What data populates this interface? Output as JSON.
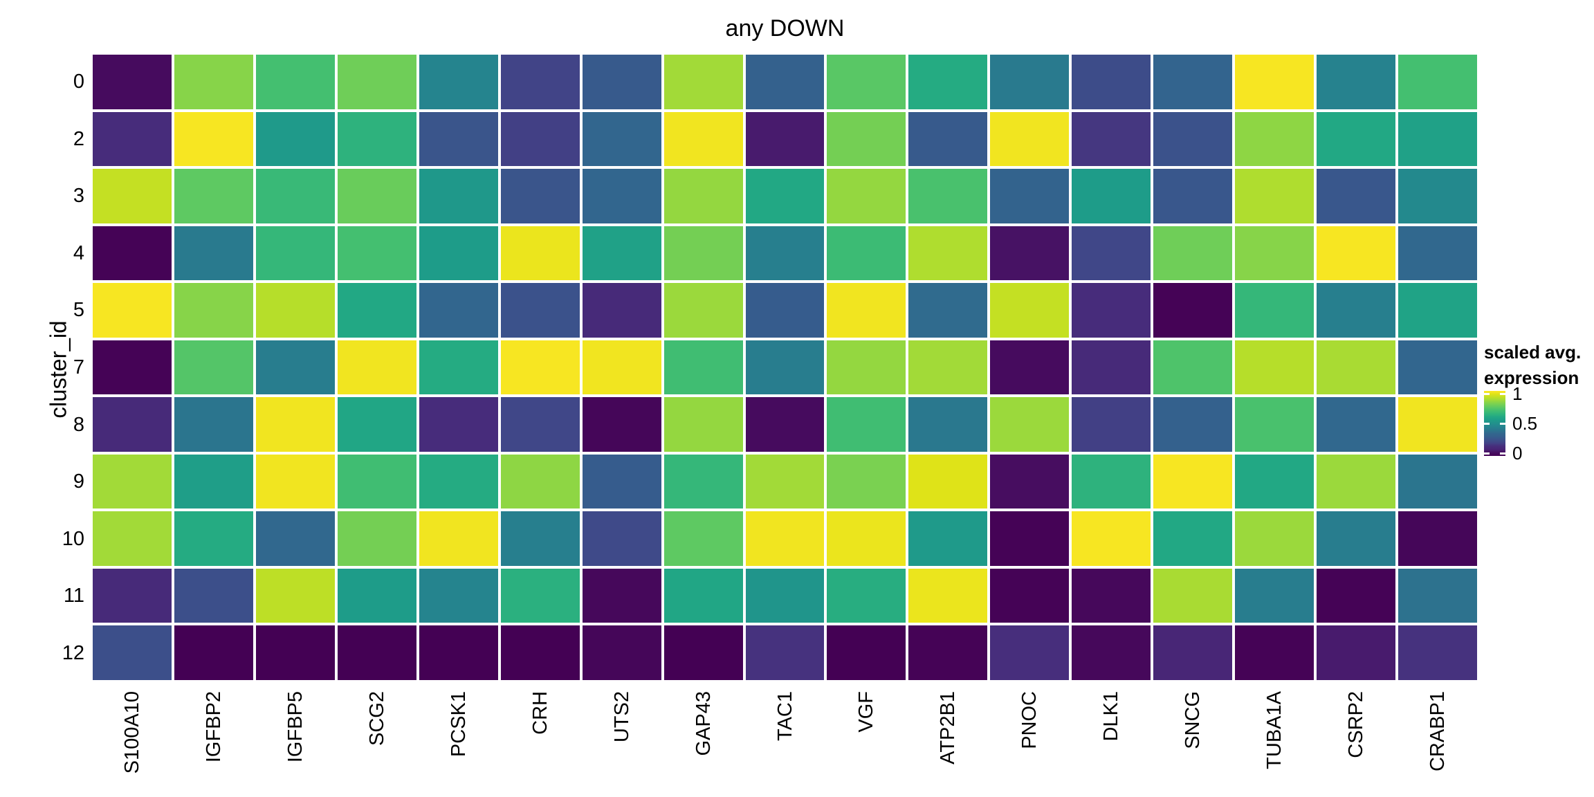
{
  "title": "any DOWN",
  "axes": {
    "y_title": "cluster_id",
    "x_tick_labels": [
      "S100A10",
      "IGFBP2",
      "IGFBP5",
      "SCG2",
      "PCSK1",
      "CRH",
      "UTS2",
      "GAP43",
      "TAC1",
      "VGF",
      "ATP2B1",
      "PNOC",
      "DLK1",
      "SNCG",
      "TUBA1A",
      "CSRP2",
      "CRABP1"
    ],
    "y_tick_labels": [
      "0",
      "2",
      "3",
      "4",
      "5",
      "7",
      "8",
      "9",
      "10",
      "11",
      "12"
    ]
  },
  "legend": {
    "title_line1": "scaled avg.",
    "title_line2": "expression",
    "tick_labels": [
      "1",
      "0.5",
      "0"
    ],
    "tick_values": [
      1,
      0.5,
      0
    ]
  },
  "colors": {
    "background": "#ffffff",
    "text": "#000000",
    "cell_gap": "#ffffff"
  },
  "chart_data": {
    "type": "heatmap",
    "title": "any DOWN",
    "xlabel": "",
    "ylabel": "cluster_id",
    "legend_title": "scaled avg. expression",
    "colormap": "viridis",
    "value_range": [
      0,
      1
    ],
    "grid": false,
    "legend_position": "right",
    "x_categories": [
      "S100A10",
      "IGFBP2",
      "IGFBP5",
      "SCG2",
      "PCSK1",
      "CRH",
      "UTS2",
      "GAP43",
      "TAC1",
      "VGF",
      "ATP2B1",
      "PNOC",
      "DLK1",
      "SNCG",
      "TUBA1A",
      "CSRP2",
      "CRABP1"
    ],
    "y_categories": [
      "0",
      "2",
      "3",
      "4",
      "5",
      "7",
      "8",
      "9",
      "10",
      "11",
      "12"
    ],
    "colormap_stops": [
      "#440154",
      "#470d60",
      "#482475",
      "#472e7c",
      "#414487",
      "#3b528b",
      "#355f8d",
      "#31688e",
      "#2a788e",
      "#25848e",
      "#21918c",
      "#1e9c89",
      "#22a884",
      "#31b57b",
      "#44bf70",
      "#5ec962",
      "#7ad151",
      "#9bd93c",
      "#bddf26",
      "#dfe318",
      "#fde725"
    ],
    "values": [
      [
        0.04,
        0.82,
        0.7,
        0.78,
        0.45,
        0.2,
        0.28,
        0.86,
        0.31,
        0.74,
        0.61,
        0.41,
        0.23,
        0.33,
        0.99,
        0.44,
        0.7
      ],
      [
        0.14,
        0.99,
        0.54,
        0.64,
        0.26,
        0.19,
        0.34,
        0.98,
        0.08,
        0.79,
        0.28,
        0.98,
        0.17,
        0.25,
        0.83,
        0.6,
        0.57
      ],
      [
        0.91,
        0.75,
        0.67,
        0.77,
        0.53,
        0.26,
        0.34,
        0.84,
        0.6,
        0.84,
        0.71,
        0.32,
        0.55,
        0.27,
        0.88,
        0.27,
        0.47
      ],
      [
        0.01,
        0.41,
        0.66,
        0.7,
        0.55,
        0.97,
        0.57,
        0.79,
        0.43,
        0.68,
        0.88,
        0.06,
        0.21,
        0.78,
        0.82,
        0.99,
        0.35
      ],
      [
        0.99,
        0.82,
        0.89,
        0.6,
        0.34,
        0.25,
        0.13,
        0.85,
        0.29,
        0.98,
        0.36,
        0.91,
        0.14,
        0.01,
        0.66,
        0.43,
        0.58
      ],
      [
        0.01,
        0.73,
        0.42,
        0.98,
        0.61,
        0.99,
        0.98,
        0.69,
        0.42,
        0.84,
        0.86,
        0.04,
        0.13,
        0.72,
        0.89,
        0.87,
        0.34
      ],
      [
        0.13,
        0.39,
        0.98,
        0.59,
        0.14,
        0.21,
        0.02,
        0.84,
        0.04,
        0.69,
        0.4,
        0.85,
        0.19,
        0.31,
        0.71,
        0.35,
        0.98
      ],
      [
        0.86,
        0.56,
        0.98,
        0.69,
        0.61,
        0.83,
        0.29,
        0.66,
        0.86,
        0.8,
        0.95,
        0.05,
        0.64,
        0.99,
        0.6,
        0.85,
        0.39
      ],
      [
        0.86,
        0.61,
        0.35,
        0.79,
        0.98,
        0.43,
        0.22,
        0.75,
        0.98,
        0.97,
        0.54,
        0.01,
        0.99,
        0.6,
        0.85,
        0.42,
        0.02
      ],
      [
        0.13,
        0.24,
        0.9,
        0.55,
        0.45,
        0.63,
        0.03,
        0.59,
        0.52,
        0.62,
        0.97,
        0.01,
        0.03,
        0.87,
        0.42,
        0.01,
        0.38
      ],
      [
        0.24,
        0.0,
        0.0,
        0.0,
        0.0,
        0.0,
        0.02,
        0.0,
        0.16,
        0.0,
        0.01,
        0.15,
        0.03,
        0.11,
        0.01,
        0.08,
        0.16
      ]
    ]
  }
}
